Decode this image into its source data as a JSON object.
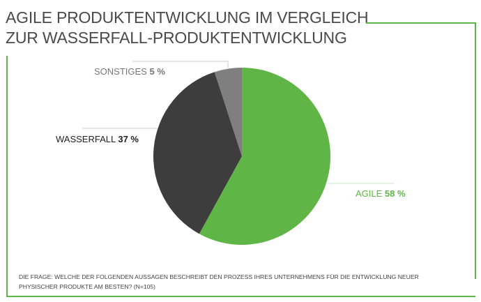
{
  "title_line1": "AGILE PRODUKTENTWICKLUNG IM VERGLEICH",
  "title_line2": "ZUR WASSERFALL-PRODUKTENTWICKLUNG",
  "footnote_line1": "DIE FRAGE: WELCHE DER FOLGENDEN AUSSAGEN BESCHREIBT DEN PROZESS IHRES UNTERNEHMENS FÜR DIE ENTWICKLUNG NEUER",
  "footnote_line2": "PHYSISCHER PRODUKTE AM BESTEN? (N=105)",
  "colors": {
    "accent": "#5fb646",
    "frame": "#5fb646"
  },
  "chart_data": {
    "type": "pie",
    "title": "AGILE PRODUKTENTWICKLUNG IM VERGLEICH ZUR WASSERFALL-PRODUKTENTWICKLUNG",
    "start": "top, clockwise",
    "slices": [
      {
        "name": "AGILE",
        "value": 58,
        "value_label": "58 %",
        "color": "#5fb646",
        "label_color": "#5fb646"
      },
      {
        "name": "WASSERFALL",
        "value": 37,
        "value_label": "37 %",
        "color": "#3d3d3d",
        "label_color": "#222222"
      },
      {
        "name": "SONSTIGES",
        "value": 5,
        "value_label": "5 %",
        "color": "#7f7f7f",
        "label_color": "#777777"
      }
    ]
  }
}
